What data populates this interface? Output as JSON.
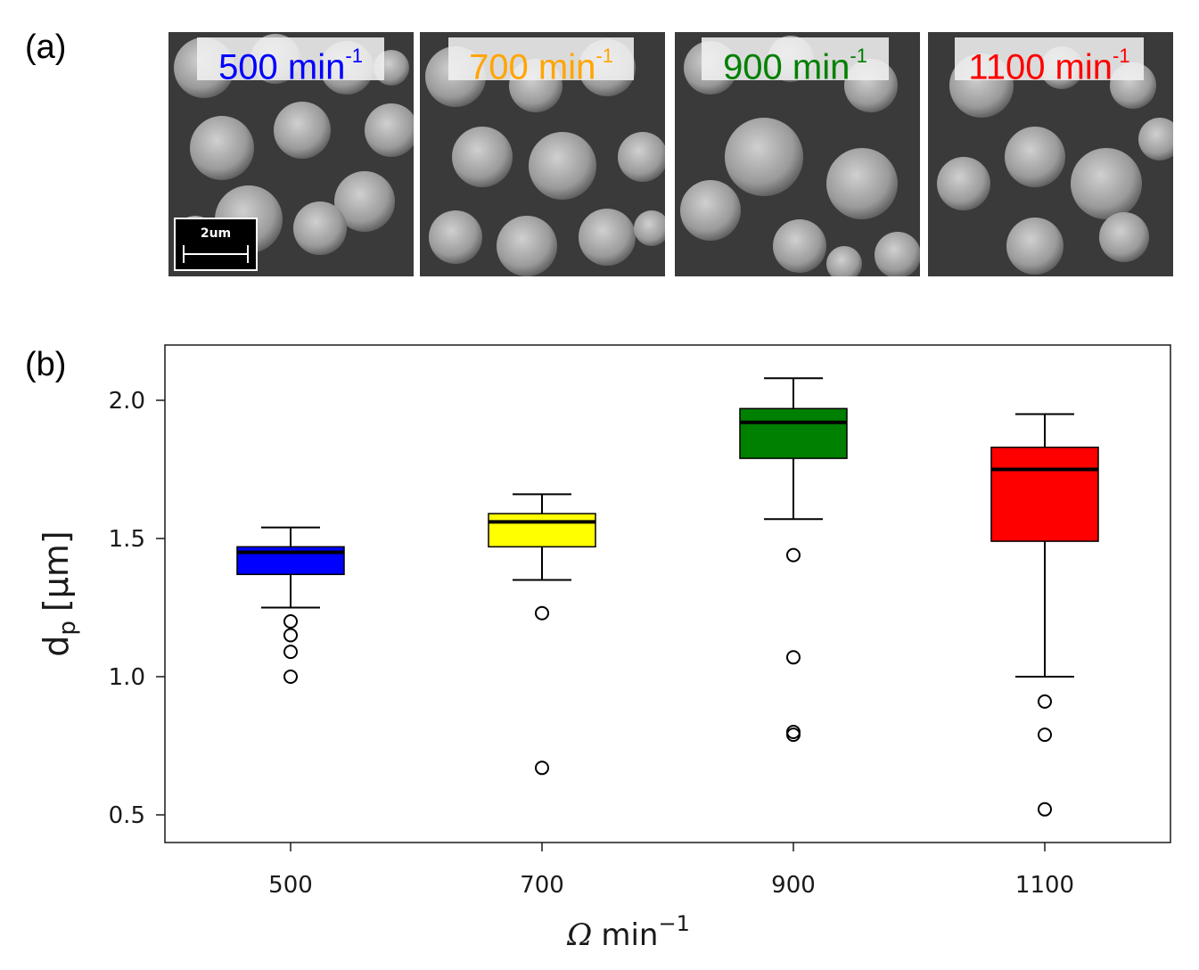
{
  "panels": {
    "a": "(a)",
    "b": "(b)"
  },
  "sem_images": [
    {
      "label": "500 min",
      "sup": "-1",
      "color": "#0000ff"
    },
    {
      "label": "700 min",
      "sup": "-1",
      "color": "#ffa500"
    },
    {
      "label": "900 min",
      "sup": "-1",
      "color": "#008000"
    },
    {
      "label": "1100 min",
      "sup": "-1",
      "color": "#ff0000"
    }
  ],
  "scale_bar": {
    "text": "2um"
  },
  "chart_data": {
    "type": "box",
    "xlabel_symbol": "Ω",
    "xlabel_unit": "min",
    "xlabel_exp": "−1",
    "ylabel_main": "d",
    "ylabel_sub": "p",
    "ylabel_unit": "[µm]",
    "ylim": [
      0.4,
      2.2
    ],
    "yticks": [
      "0.5",
      "1.0",
      "1.5",
      "2.0"
    ],
    "xlim": [
      400,
      1200
    ],
    "categories": [
      "500",
      "700",
      "900",
      "1100"
    ],
    "boxes": [
      {
        "x": 500,
        "whisker_low": 1.25,
        "q1": 1.37,
        "median": 1.45,
        "q3": 1.47,
        "whisker_high": 1.54,
        "outliers": [
          1.2,
          1.15,
          1.09,
          1.0
        ],
        "color": "#0000ff"
      },
      {
        "x": 700,
        "whisker_low": 1.35,
        "q1": 1.47,
        "median": 1.56,
        "q3": 1.59,
        "whisker_high": 1.66,
        "outliers": [
          1.23,
          0.67
        ],
        "color": "#ffff00"
      },
      {
        "x": 900,
        "whisker_low": 1.57,
        "q1": 1.79,
        "median": 1.92,
        "q3": 1.97,
        "whisker_high": 2.08,
        "outliers": [
          1.44,
          1.07,
          0.8,
          0.79
        ],
        "color": "#008000"
      },
      {
        "x": 1100,
        "whisker_low": 1.0,
        "q1": 1.49,
        "median": 1.75,
        "q3": 1.83,
        "whisker_high": 1.95,
        "outliers": [
          0.91,
          0.79,
          0.52
        ],
        "color": "#ff0000"
      }
    ]
  }
}
